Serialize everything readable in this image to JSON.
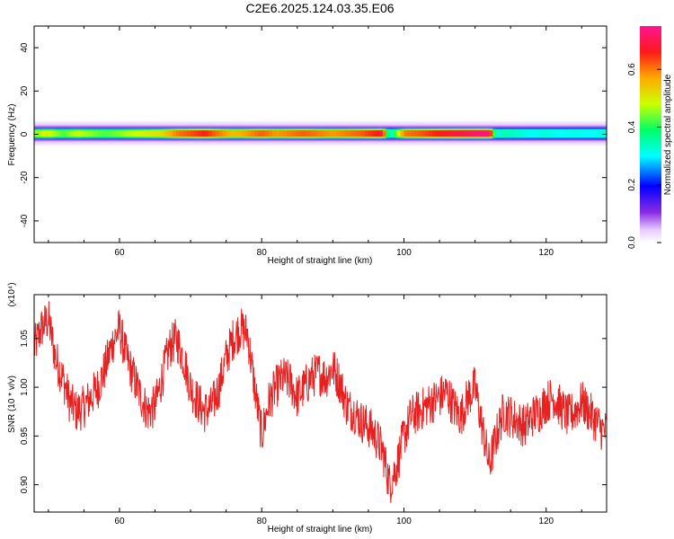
{
  "title": "C2E6.2025.124.03.35.E06",
  "chart_data": [
    {
      "type": "heatmap",
      "name": "spectrogram",
      "xlabel": "Height of straight line (km)",
      "ylabel": "Frequency (Hz)",
      "xlim": [
        48,
        128.5
      ],
      "ylim": [
        -50,
        50
      ],
      "x_ticks": [
        60,
        80,
        100,
        120
      ],
      "y_ticks": [
        -40,
        -20,
        0,
        20,
        40
      ],
      "band_center_hz": 0.5,
      "band_half_width_hz": 2.5,
      "amplitude_profile": {
        "x": [
          48,
          50,
          52,
          54,
          56,
          58,
          60,
          62,
          64,
          66,
          68,
          70,
          72,
          74,
          76,
          78,
          80,
          82,
          84,
          86,
          88,
          90,
          92,
          94,
          96,
          97,
          98,
          99,
          100,
          102,
          104,
          106,
          108,
          110,
          112,
          113,
          114,
          116,
          118,
          120,
          122,
          124,
          126,
          128.5
        ],
        "value": [
          0.45,
          0.5,
          0.42,
          0.48,
          0.45,
          0.42,
          0.45,
          0.48,
          0.5,
          0.52,
          0.6,
          0.63,
          0.66,
          0.6,
          0.55,
          0.58,
          0.62,
          0.58,
          0.6,
          0.62,
          0.6,
          0.58,
          0.6,
          0.62,
          0.66,
          0.7,
          0.3,
          0.45,
          0.6,
          0.62,
          0.65,
          0.68,
          0.7,
          0.72,
          0.75,
          0.3,
          0.35,
          0.33,
          0.3,
          0.32,
          0.3,
          0.31,
          0.3,
          0.32
        ]
      },
      "colorbar": {
        "label": "Normalized spectral amplitude",
        "range": [
          0.0,
          0.75
        ],
        "ticks": [
          "0.0",
          "0.2",
          "0.4",
          "0.6"
        ],
        "tick_values": [
          0.0,
          0.2,
          0.4,
          0.6
        ],
        "colormap": "rainbow (white-violet-blue-cyan-green-yellow-orange-red-magenta)"
      }
    },
    {
      "type": "line",
      "name": "snr",
      "xlabel": "Height of straight line (km)",
      "ylabel": "SNR (10 * v/v)",
      "multiplier": "(x10⁴)",
      "xlim": [
        48,
        128.5
      ],
      "ylim": [
        0.872,
        1.095
      ],
      "x_ticks": [
        60,
        80,
        100,
        120
      ],
      "y_ticks": [
        "0.90",
        "0.95",
        "1.00",
        "1.05"
      ],
      "y_tick_values": [
        0.9,
        0.95,
        1.0,
        1.05
      ],
      "color": "#e82020",
      "x": [
        48,
        49,
        50,
        51,
        52,
        53,
        54,
        55,
        56,
        57,
        58,
        59,
        60,
        61,
        62,
        63,
        64,
        65,
        66,
        67,
        68,
        69,
        70,
        71,
        72,
        73,
        74,
        75,
        76,
        77,
        78,
        79,
        80,
        81,
        82,
        83,
        84,
        85,
        86,
        87,
        88,
        89,
        90,
        91,
        92,
        93,
        94,
        95,
        96,
        97,
        98,
        99,
        100,
        101,
        102,
        103,
        104,
        105,
        106,
        107,
        108,
        109,
        110,
        111,
        112,
        113,
        114,
        115,
        116,
        117,
        118,
        119,
        120,
        121,
        122,
        123,
        124,
        125,
        126,
        127,
        128,
        128.5
      ],
      "y": [
        1.04,
        1.06,
        1.07,
        1.03,
        1.01,
        0.985,
        0.975,
        0.98,
        0.99,
        1.0,
        1.02,
        1.045,
        1.06,
        1.03,
        1.01,
        0.99,
        0.975,
        0.98,
        1.01,
        1.04,
        1.05,
        1.03,
        1.0,
        0.985,
        0.975,
        0.98,
        1.0,
        1.03,
        1.05,
        1.06,
        1.055,
        1.0,
        0.95,
        0.985,
        1.0,
        1.01,
        1.005,
        0.99,
        1.0,
        1.01,
        1.015,
        1.01,
        1.02,
        1.005,
        0.98,
        0.975,
        0.965,
        0.96,
        0.95,
        0.935,
        0.9,
        0.92,
        0.95,
        0.97,
        0.975,
        0.98,
        0.985,
        0.99,
        0.995,
        0.98,
        0.97,
        0.99,
        1.0,
        0.96,
        0.92,
        0.95,
        0.975,
        0.97,
        0.965,
        0.96,
        0.97,
        0.975,
        0.985,
        0.99,
        0.98,
        0.97,
        0.975,
        0.985,
        0.975,
        0.965,
        0.955,
        0.955
      ]
    }
  ]
}
